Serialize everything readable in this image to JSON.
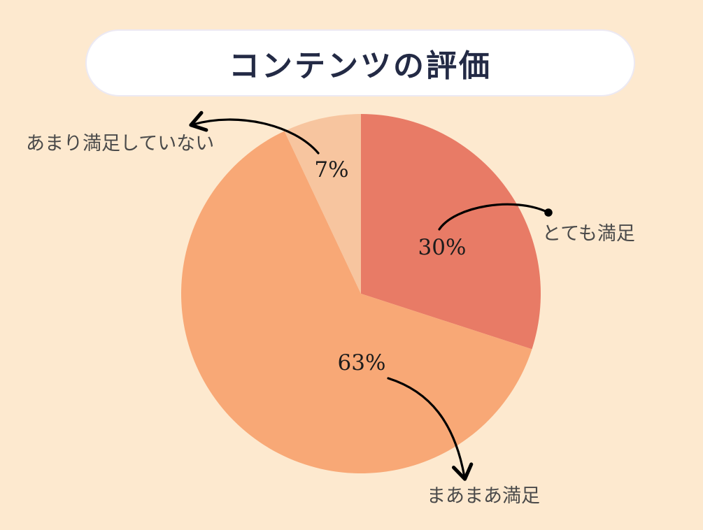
{
  "title": "コンテンツの評価",
  "chart_data": {
    "type": "pie",
    "title": "コンテンツの評価",
    "slices": [
      {
        "label": "とても満足",
        "value": 30,
        "value_label": "30%",
        "color": "#e87b66"
      },
      {
        "label": "まあまあ満足",
        "value": 63,
        "value_label": "63%",
        "color": "#f8a876"
      },
      {
        "label": "あまり満足していない",
        "value": 7,
        "value_label": "7%",
        "color": "#f7c59f"
      }
    ]
  },
  "colors": {
    "background": "#fde9cf",
    "title_text": "#232a45",
    "arrow": "#000000"
  }
}
